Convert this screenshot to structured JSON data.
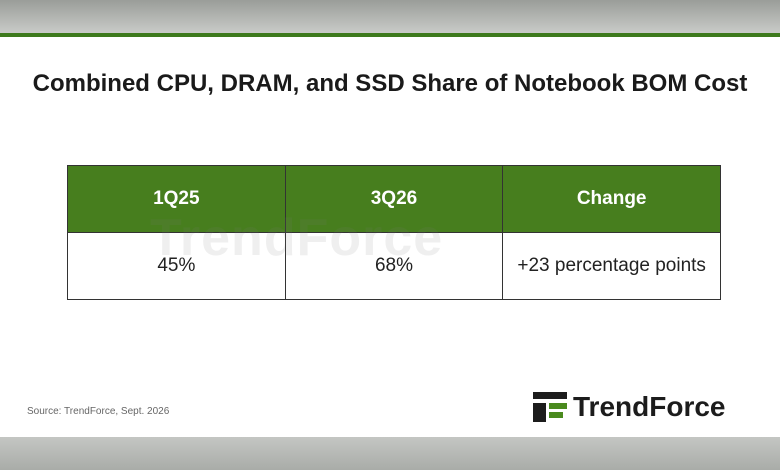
{
  "header": {
    "title": "Combined CPU, DRAM, and SSD Share of Notebook BOM Cost"
  },
  "table": {
    "columns": [
      "1Q25",
      "3Q26",
      "Change"
    ],
    "rows": [
      [
        "45%",
        "68%",
        "+23 percentage points"
      ]
    ]
  },
  "watermark": "TrendForce",
  "footer": {
    "source": "Source: TrendForce, Sept. 2026",
    "logo": "TrendForce"
  }
}
